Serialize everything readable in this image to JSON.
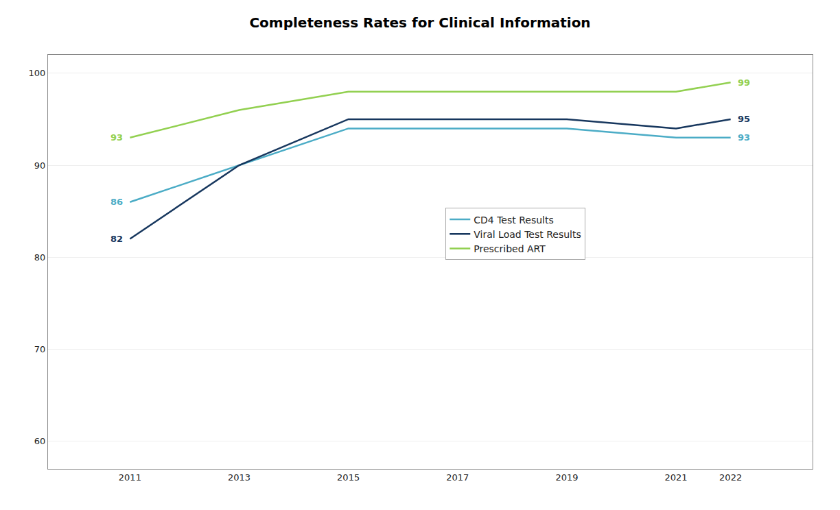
{
  "chart_data": {
    "type": "line",
    "title": "Completeness Rates for Clinical Information",
    "x": [
      2011,
      2013,
      2015,
      2017,
      2019,
      2021,
      2022
    ],
    "series": [
      {
        "name": "CD4 Test Results",
        "color": "#4BACC6",
        "values": [
          86,
          90,
          94,
          94,
          94,
          93,
          93
        ],
        "value_labels": [
          "86",
          null,
          null,
          null,
          null,
          null,
          "93"
        ]
      },
      {
        "name": "Viral Load Test Results",
        "color": "#17375E",
        "values": [
          82,
          90,
          95,
          95,
          95,
          94,
          95
        ],
        "value_labels": [
          "82",
          null,
          null,
          null,
          null,
          null,
          "95"
        ]
      },
      {
        "name": "Prescribed ART",
        "color": "#92D050",
        "values": [
          93,
          96,
          98,
          98,
          98,
          98,
          99
        ],
        "value_labels": [
          "93",
          null,
          null,
          null,
          null,
          null,
          "99"
        ]
      }
    ],
    "xlim": [
      2009.5,
      2023.5
    ],
    "xticks": [
      2011,
      2013,
      2015,
      2017,
      2019,
      2021,
      2022
    ],
    "ylim": [
      57,
      102
    ],
    "yticks": [
      60,
      70,
      80,
      90,
      100
    ],
    "grid": "y",
    "legend": "center",
    "data_labels": true
  }
}
